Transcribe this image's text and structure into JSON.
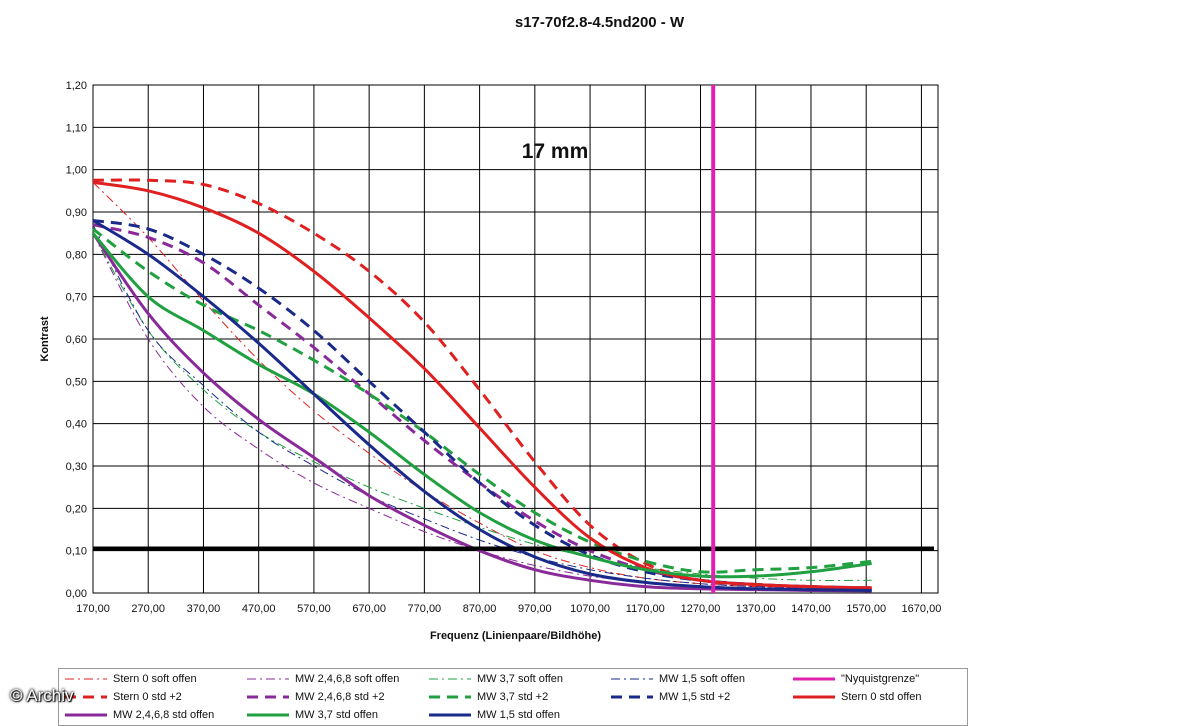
{
  "chart_data": {
    "type": "line",
    "title": "s17-70f2.8-4.5nd200 - W",
    "annotation": "17 mm",
    "xlabel": "Frequenz (Linienpaare/Bildhöhe)",
    "ylabel": "Kontrast",
    "xlim": [
      170,
      1700
    ],
    "ylim": [
      0,
      1.2
    ],
    "x_ticks": [
      "170,00",
      "270,00",
      "370,00",
      "470,00",
      "570,00",
      "670,00",
      "770,00",
      "870,00",
      "970,00",
      "1070,00",
      "1170,00",
      "1270,00",
      "1370,00",
      "1470,00",
      "1570,00",
      "1670,00"
    ],
    "y_ticks": [
      "0,00",
      "0,10",
      "0,20",
      "0,30",
      "0,40",
      "0,50",
      "0,60",
      "0,70",
      "0,80",
      "0,90",
      "1,00",
      "1,10",
      "1,20"
    ],
    "grid": true,
    "reference_line": {
      "y": 0.105,
      "color": "#000000"
    },
    "nyquist_line": {
      "x": 1293,
      "color": "#e020b0"
    },
    "series": [
      {
        "name": "Stern 0 soft offen",
        "color": "#e02020",
        "style": "dashdot",
        "width": 1,
        "x": [
          170,
          270,
          370,
          470,
          570,
          670,
          770,
          870,
          970,
          1070,
          1170,
          1270,
          1370,
          1470,
          1580
        ],
        "y": [
          0.97,
          0.84,
          0.69,
          0.55,
          0.43,
          0.33,
          0.24,
          0.165,
          0.1,
          0.06,
          0.035,
          0.022,
          0.015,
          0.012,
          0.01
        ]
      },
      {
        "name": "MW 2,4,6,8 soft offen",
        "color": "#8a2a9a",
        "style": "dashdot",
        "width": 1,
        "x": [
          170,
          270,
          370,
          470,
          570,
          670,
          770,
          870,
          970,
          1070,
          1170,
          1270,
          1370,
          1470,
          1580
        ],
        "y": [
          0.85,
          0.6,
          0.44,
          0.34,
          0.26,
          0.2,
          0.145,
          0.1,
          0.065,
          0.04,
          0.025,
          0.015,
          0.01,
          0.008,
          0.006
        ]
      },
      {
        "name": "MW 3,7 soft offen",
        "color": "#20a040",
        "style": "dashdot",
        "width": 1,
        "x": [
          170,
          270,
          370,
          470,
          570,
          670,
          770,
          870,
          970,
          1070,
          1170,
          1270,
          1370,
          1470,
          1580
        ],
        "y": [
          0.85,
          0.62,
          0.48,
          0.38,
          0.31,
          0.25,
          0.2,
          0.155,
          0.115,
          0.085,
          0.06,
          0.045,
          0.035,
          0.03,
          0.03
        ]
      },
      {
        "name": "MW 1,5 soft offen",
        "color": "#1a2a8a",
        "style": "dashdot",
        "width": 1,
        "x": [
          170,
          270,
          370,
          470,
          570,
          670,
          770,
          870,
          970,
          1070,
          1170,
          1270,
          1370,
          1470,
          1580
        ],
        "y": [
          0.87,
          0.62,
          0.49,
          0.38,
          0.3,
          0.23,
          0.175,
          0.125,
          0.085,
          0.055,
          0.035,
          0.022,
          0.015,
          0.012,
          0.01
        ]
      },
      {
        "name": "\"Nyquistgrenze\"",
        "color": "#e020b0",
        "style": "solid",
        "width": 3,
        "x": [
          1293,
          1293
        ],
        "y": [
          0,
          1.2
        ]
      },
      {
        "name": "Stern 0 std +2",
        "color": "#e02020",
        "style": "dashed",
        "width": 3,
        "x": [
          170,
          270,
          370,
          470,
          570,
          670,
          770,
          870,
          970,
          1070,
          1170,
          1270,
          1370,
          1470,
          1580
        ],
        "y": [
          0.975,
          0.975,
          0.965,
          0.92,
          0.85,
          0.76,
          0.64,
          0.48,
          0.31,
          0.16,
          0.07,
          0.03,
          0.02,
          0.015,
          0.01
        ]
      },
      {
        "name": "MW 2,4,6,8 std +2",
        "color": "#8a2a9a",
        "style": "dashed",
        "width": 3,
        "x": [
          170,
          270,
          370,
          470,
          570,
          670,
          770,
          870,
          970,
          1070,
          1170,
          1270,
          1370,
          1470,
          1580
        ],
        "y": [
          0.87,
          0.84,
          0.78,
          0.68,
          0.58,
          0.47,
          0.36,
          0.26,
          0.17,
          0.1,
          0.055,
          0.03,
          0.02,
          0.015,
          0.012
        ]
      },
      {
        "name": "MW 3,7 std +2",
        "color": "#20a040",
        "style": "dashed",
        "width": 3,
        "x": [
          170,
          270,
          370,
          470,
          570,
          670,
          770,
          870,
          970,
          1070,
          1170,
          1270,
          1370,
          1470,
          1580
        ],
        "y": [
          0.86,
          0.76,
          0.68,
          0.62,
          0.55,
          0.47,
          0.38,
          0.28,
          0.19,
          0.12,
          0.075,
          0.05,
          0.055,
          0.06,
          0.075
        ]
      },
      {
        "name": "MW 1,5 std +2",
        "color": "#1a2a8a",
        "style": "dashed",
        "width": 3,
        "x": [
          170,
          270,
          370,
          470,
          570,
          670,
          770,
          870,
          970,
          1070,
          1170,
          1270,
          1370,
          1470,
          1580
        ],
        "y": [
          0.88,
          0.86,
          0.8,
          0.72,
          0.62,
          0.5,
          0.38,
          0.26,
          0.16,
          0.09,
          0.05,
          0.03,
          0.02,
          0.015,
          0.012
        ]
      },
      {
        "name": "Stern 0 std offen",
        "color": "#e02020",
        "style": "solid",
        "width": 3,
        "x": [
          170,
          270,
          370,
          470,
          570,
          670,
          770,
          870,
          970,
          1070,
          1170,
          1270,
          1370,
          1470,
          1580
        ],
        "y": [
          0.97,
          0.95,
          0.91,
          0.85,
          0.76,
          0.65,
          0.53,
          0.39,
          0.25,
          0.13,
          0.06,
          0.03,
          0.02,
          0.015,
          0.012
        ]
      },
      {
        "name": "MW 2,4,6,8 std offen",
        "color": "#8a2a9a",
        "style": "solid",
        "width": 3,
        "x": [
          170,
          270,
          370,
          470,
          570,
          670,
          770,
          870,
          970,
          1070,
          1170,
          1270,
          1370,
          1470,
          1580
        ],
        "y": [
          0.85,
          0.66,
          0.52,
          0.41,
          0.32,
          0.23,
          0.16,
          0.1,
          0.055,
          0.03,
          0.015,
          0.01,
          0.008,
          0.006,
          0.005
        ]
      },
      {
        "name": "MW 3,7 std offen",
        "color": "#20a040",
        "style": "solid",
        "width": 3,
        "x": [
          170,
          270,
          370,
          470,
          570,
          670,
          770,
          870,
          970,
          1070,
          1170,
          1270,
          1370,
          1470,
          1580
        ],
        "y": [
          0.85,
          0.7,
          0.62,
          0.54,
          0.47,
          0.38,
          0.28,
          0.19,
          0.125,
          0.085,
          0.055,
          0.04,
          0.04,
          0.05,
          0.07
        ]
      },
      {
        "name": "MW 1,5 std offen",
        "color": "#1a2a8a",
        "style": "solid",
        "width": 3,
        "x": [
          170,
          270,
          370,
          470,
          570,
          670,
          770,
          870,
          970,
          1070,
          1170,
          1270,
          1370,
          1470,
          1580
        ],
        "y": [
          0.88,
          0.8,
          0.7,
          0.59,
          0.47,
          0.35,
          0.24,
          0.15,
          0.085,
          0.045,
          0.025,
          0.015,
          0.01,
          0.008,
          0.006
        ]
      }
    ]
  },
  "watermark": "© Archiv"
}
